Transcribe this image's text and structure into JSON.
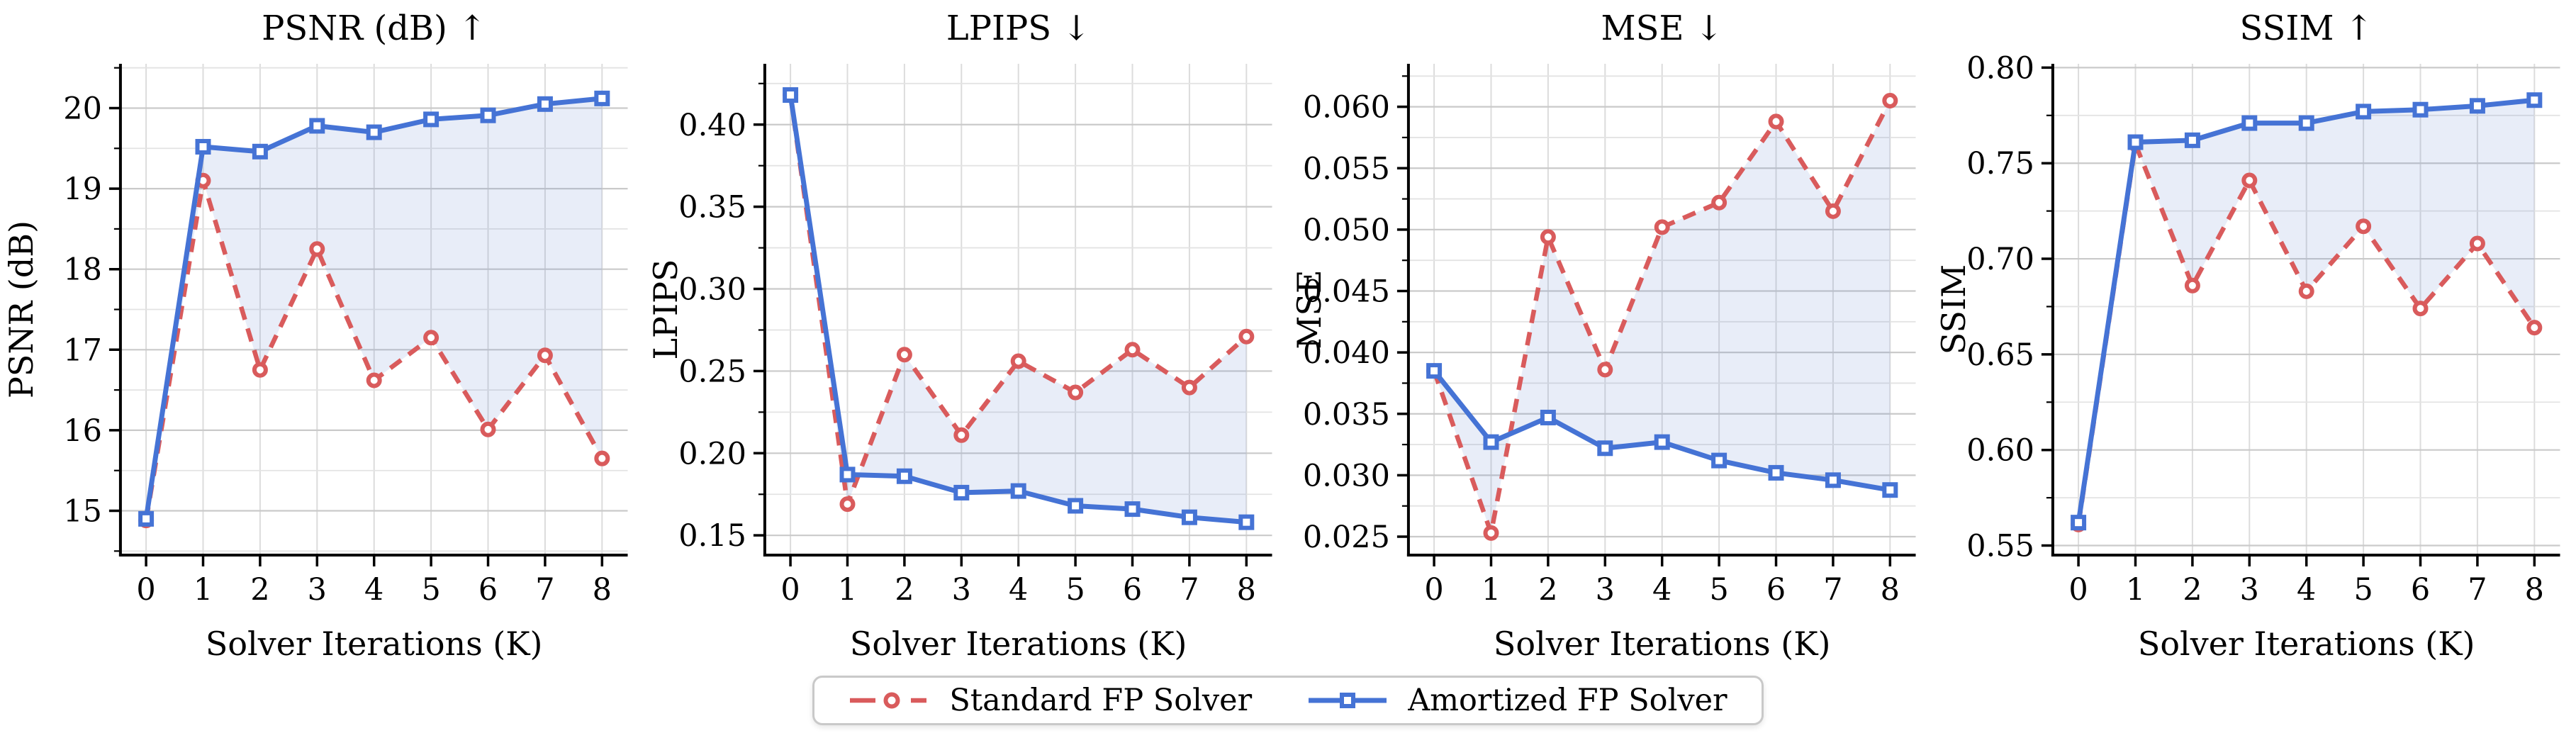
{
  "figure": {
    "background": "#ffffff",
    "fill_between_color": "rgba(100,135,205,0.15)",
    "series_styles": {
      "standard": {
        "color": "#d95b5c",
        "line": "dashed",
        "marker": "circle"
      },
      "amortized": {
        "color": "#4573d5",
        "line": "solid",
        "marker": "square"
      }
    },
    "legend": {
      "entries": [
        {
          "label": "Standard FP Solver",
          "series": "standard"
        },
        {
          "label": "Amortized FP Solver",
          "series": "amortized"
        }
      ]
    }
  },
  "chart_data": [
    {
      "id": "psnr",
      "type": "line",
      "title": "PSNR (dB) ↑",
      "xlabel": "Solver Iterations (K)",
      "ylabel": "PSNR (dB)",
      "x": [
        0,
        1,
        2,
        3,
        4,
        5,
        6,
        7,
        8
      ],
      "xlim": [
        -0.45,
        8.45
      ],
      "ylim": [
        14.45,
        20.55
      ],
      "xticks": {
        "values": [
          0,
          1,
          2,
          3,
          4,
          5,
          6,
          7,
          8
        ],
        "labels": [
          "0",
          "1",
          "2",
          "3",
          "4",
          "5",
          "6",
          "7",
          "8"
        ]
      },
      "yticks": {
        "values": [
          15,
          16,
          17,
          18,
          19,
          20
        ],
        "labels": [
          "15",
          "16",
          "17",
          "18",
          "19",
          "20"
        ]
      },
      "y_minor_step": 0.5,
      "grid": true,
      "legend_position": "none",
      "fill_between_series": true,
      "series": [
        {
          "key": "standard",
          "name": "Standard FP Solver",
          "values": [
            14.88,
            19.1,
            16.75,
            18.25,
            16.62,
            17.15,
            16.01,
            16.93,
            15.65
          ]
        },
        {
          "key": "amortized",
          "name": "Amortized FP Solver",
          "values": [
            14.9,
            19.52,
            19.46,
            19.78,
            19.7,
            19.86,
            19.91,
            20.05,
            20.12
          ]
        }
      ]
    },
    {
      "id": "lpips",
      "type": "line",
      "title": "LPIPS ↓",
      "xlabel": "Solver Iterations (K)",
      "ylabel": "LPIPS",
      "x": [
        0,
        1,
        2,
        3,
        4,
        5,
        6,
        7,
        8
      ],
      "xlim": [
        -0.45,
        8.45
      ],
      "ylim": [
        0.138,
        0.437
      ],
      "xticks": {
        "values": [
          0,
          1,
          2,
          3,
          4,
          5,
          6,
          7,
          8
        ],
        "labels": [
          "0",
          "1",
          "2",
          "3",
          "4",
          "5",
          "6",
          "7",
          "8"
        ]
      },
      "yticks": {
        "values": [
          0.15,
          0.2,
          0.25,
          0.3,
          0.35,
          0.4
        ],
        "labels": [
          "0.15",
          "0.20",
          "0.25",
          "0.30",
          "0.35",
          "0.40"
        ]
      },
      "y_minor_step": 0.025,
      "grid": true,
      "legend_position": "none",
      "fill_between_series": true,
      "series": [
        {
          "key": "standard",
          "name": "Standard FP Solver",
          "values": [
            0.418,
            0.169,
            0.26,
            0.211,
            0.256,
            0.237,
            0.263,
            0.24,
            0.271
          ]
        },
        {
          "key": "amortized",
          "name": "Amortized FP Solver",
          "values": [
            0.418,
            0.187,
            0.186,
            0.176,
            0.177,
            0.168,
            0.166,
            0.161,
            0.158
          ]
        }
      ]
    },
    {
      "id": "mse",
      "type": "line",
      "title": "MSE ↓",
      "xlabel": "Solver Iterations (K)",
      "ylabel": "MSE",
      "x": [
        0,
        1,
        2,
        3,
        4,
        5,
        6,
        7,
        8
      ],
      "xlim": [
        -0.45,
        8.45
      ],
      "ylim": [
        0.0235,
        0.0635
      ],
      "xticks": {
        "values": [
          0,
          1,
          2,
          3,
          4,
          5,
          6,
          7,
          8
        ],
        "labels": [
          "0",
          "1",
          "2",
          "3",
          "4",
          "5",
          "6",
          "7",
          "8"
        ]
      },
      "yticks": {
        "values": [
          0.025,
          0.03,
          0.035,
          0.04,
          0.045,
          0.05,
          0.055,
          0.06
        ],
        "labels": [
          "0.025",
          "0.030",
          "0.035",
          "0.040",
          "0.045",
          "0.050",
          "0.055",
          "0.060"
        ]
      },
      "y_minor_step": 0.0025,
      "grid": true,
      "legend_position": "none",
      "fill_between_series": true,
      "series": [
        {
          "key": "standard",
          "name": "Standard FP Solver",
          "values": [
            0.0385,
            0.0253,
            0.0494,
            0.0386,
            0.0502,
            0.0522,
            0.0588,
            0.0515,
            0.0605
          ]
        },
        {
          "key": "amortized",
          "name": "Amortized FP Solver",
          "values": [
            0.0385,
            0.0327,
            0.0347,
            0.0322,
            0.0327,
            0.0312,
            0.0302,
            0.0296,
            0.0288
          ]
        }
      ]
    },
    {
      "id": "ssim",
      "type": "line",
      "title": "SSIM ↑",
      "xlabel": "Solver Iterations (K)",
      "ylabel": "SSIM",
      "x": [
        0,
        1,
        2,
        3,
        4,
        5,
        6,
        7,
        8
      ],
      "xlim": [
        -0.45,
        8.45
      ],
      "ylim": [
        0.545,
        0.802
      ],
      "xticks": {
        "values": [
          0,
          1,
          2,
          3,
          4,
          5,
          6,
          7,
          8
        ],
        "labels": [
          "0",
          "1",
          "2",
          "3",
          "4",
          "5",
          "6",
          "7",
          "8"
        ]
      },
      "yticks": {
        "values": [
          0.55,
          0.6,
          0.65,
          0.7,
          0.75,
          0.8
        ],
        "labels": [
          "0.55",
          "0.60",
          "0.65",
          "0.70",
          "0.75",
          "0.80"
        ]
      },
      "y_minor_step": 0.025,
      "grid": true,
      "legend_position": "none",
      "fill_between_series": true,
      "series": [
        {
          "key": "standard",
          "name": "Standard FP Solver",
          "values": [
            0.561,
            0.76,
            0.686,
            0.741,
            0.683,
            0.717,
            0.674,
            0.708,
            0.664
          ]
        },
        {
          "key": "amortized",
          "name": "Amortized FP Solver",
          "values": [
            0.562,
            0.761,
            0.762,
            0.771,
            0.771,
            0.777,
            0.778,
            0.78,
            0.783
          ]
        }
      ]
    }
  ]
}
